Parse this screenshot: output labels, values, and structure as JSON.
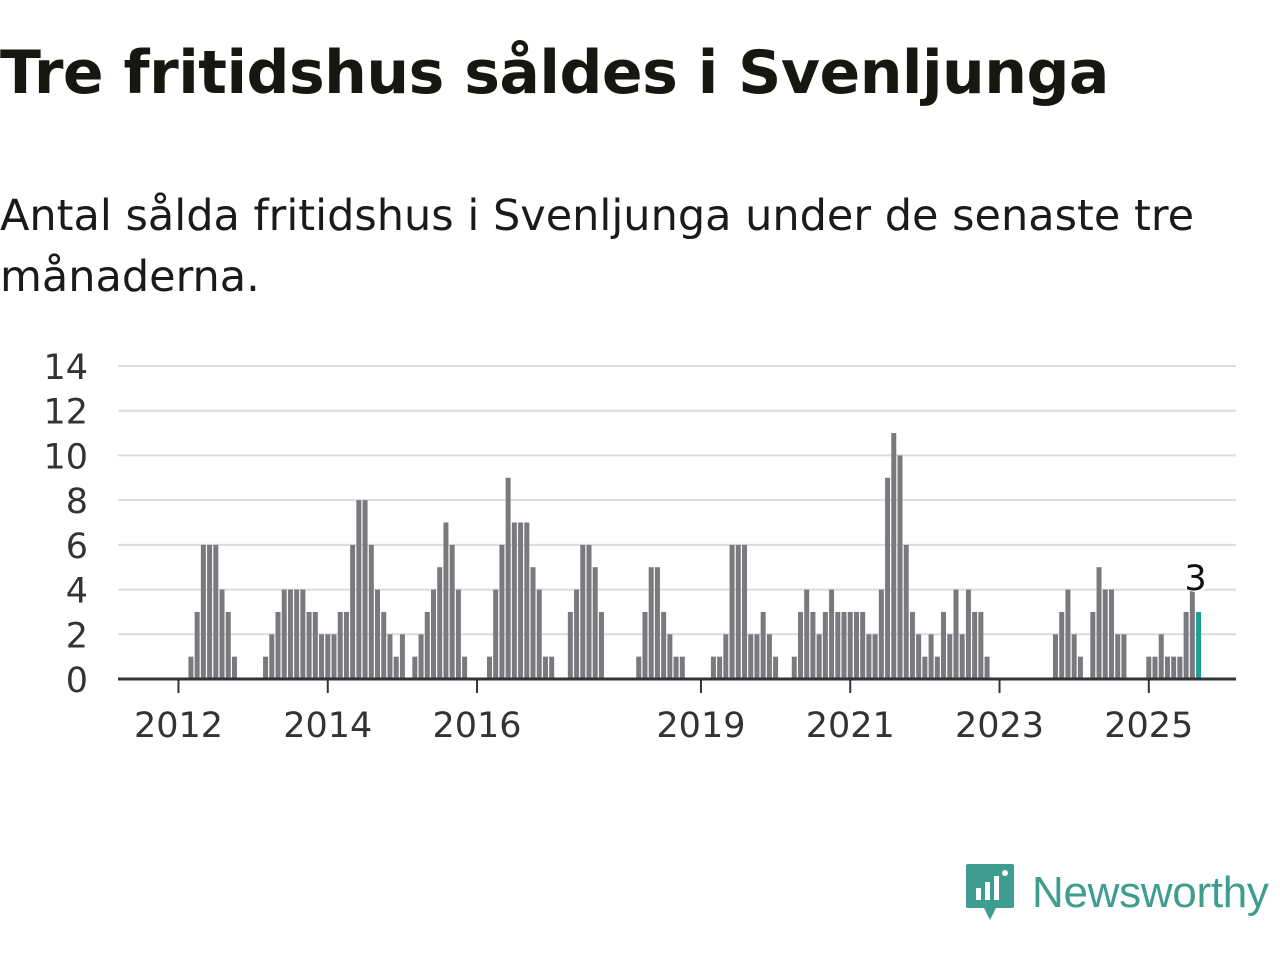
{
  "title": "Tre fritidshus såldes i Svenljunga",
  "subtitle": "Antal sålda fritidshus i Svenljunga under de senaste tre månaderna.",
  "brand": {
    "name": "Newsworthy",
    "color": "#3e9d8f"
  },
  "colors": {
    "bar": "#7a797e",
    "highlight": "#1f9e98",
    "grid": "#dcdcdc",
    "axis": "#333333",
    "tick_text": "#333333"
  },
  "chart_data": {
    "type": "bar",
    "title": "",
    "xlabel": "",
    "ylabel": "",
    "ylim": [
      0,
      14
    ],
    "yticks": [
      0,
      2,
      4,
      6,
      8,
      10,
      12,
      14
    ],
    "xticks": [
      {
        "label": "2012",
        "index": 9
      },
      {
        "label": "2014",
        "index": 33
      },
      {
        "label": "2016",
        "index": 57
      },
      {
        "label": "2019",
        "index": 93
      },
      {
        "label": "2021",
        "index": 117
      },
      {
        "label": "2023",
        "index": 141
      },
      {
        "label": "2025",
        "index": 165
      }
    ],
    "grid": true,
    "legend": "none",
    "values": [
      0,
      0,
      0,
      0,
      0,
      0,
      0,
      0,
      0,
      0,
      0,
      1,
      3,
      6,
      6,
      6,
      4,
      3,
      1,
      0,
      0,
      0,
      0,
      1,
      2,
      3,
      4,
      4,
      4,
      4,
      3,
      3,
      2,
      2,
      2,
      3,
      3,
      6,
      8,
      8,
      6,
      4,
      3,
      2,
      1,
      2,
      0,
      1,
      2,
      3,
      4,
      5,
      7,
      6,
      4,
      1,
      0,
      0,
      0,
      1,
      4,
      6,
      9,
      7,
      7,
      7,
      5,
      4,
      1,
      1,
      0,
      0,
      3,
      4,
      6,
      6,
      5,
      3,
      0,
      0,
      0,
      0,
      0,
      1,
      3,
      5,
      5,
      3,
      2,
      1,
      1,
      0,
      0,
      0,
      0,
      1,
      1,
      2,
      6,
      6,
      6,
      2,
      2,
      3,
      2,
      1,
      0,
      0,
      1,
      3,
      4,
      3,
      2,
      3,
      4,
      3,
      3,
      3,
      3,
      3,
      2,
      2,
      4,
      9,
      11,
      10,
      6,
      3,
      2,
      1,
      2,
      1,
      3,
      2,
      4,
      2,
      4,
      3,
      3,
      1,
      0,
      0,
      0,
      0,
      0,
      0,
      0,
      0,
      0,
      0,
      2,
      3,
      4,
      2,
      1,
      0,
      3,
      5,
      4,
      4,
      2,
      2,
      0,
      0,
      0,
      1,
      1,
      2,
      1,
      1,
      1,
      3,
      4,
      3
    ],
    "highlight_index": 173,
    "highlight_label": "3"
  }
}
